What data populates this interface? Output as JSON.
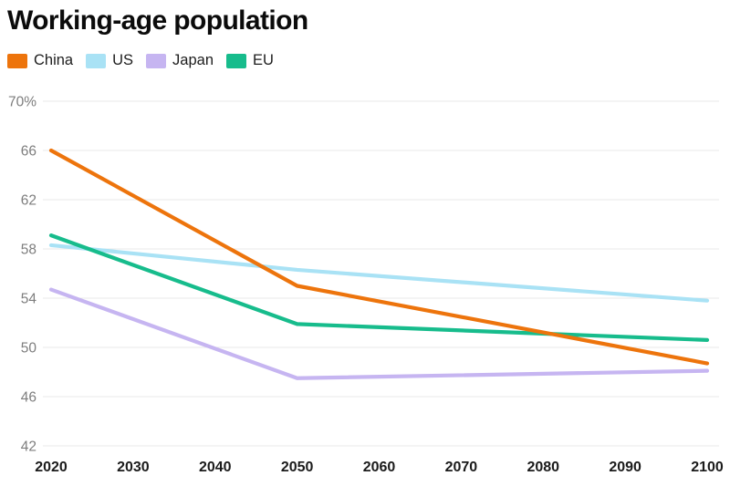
{
  "title": "Working-age population",
  "chart_data": {
    "type": "line",
    "title": "Working-age population",
    "x": [
      2020,
      2050,
      2100
    ],
    "series": [
      {
        "name": "China",
        "color": "#ED740C",
        "values": [
          66.0,
          55.0,
          48.7
        ]
      },
      {
        "name": "US",
        "color": "#A9E2F5",
        "values": [
          58.3,
          56.3,
          53.8
        ]
      },
      {
        "name": "Japan",
        "color": "#C6B5F1",
        "values": [
          54.7,
          47.5,
          48.1
        ]
      },
      {
        "name": "EU",
        "color": "#17BC8C",
        "values": [
          59.1,
          51.9,
          50.6
        ]
      }
    ],
    "xlim": [
      2020,
      2100
    ],
    "ylim": [
      42,
      70
    ],
    "xticks": [
      2020,
      2030,
      2040,
      2050,
      2060,
      2070,
      2080,
      2090,
      2100
    ],
    "yticks": [
      42,
      46,
      50,
      54,
      58,
      62,
      66,
      70
    ],
    "ytick_labels": [
      "42",
      "46",
      "50",
      "54",
      "58",
      "62",
      "66",
      "70%"
    ],
    "grid": "horizontal",
    "legend_position": "top-left",
    "draw_order": [
      "US",
      "Japan",
      "EU",
      "China"
    ]
  },
  "style": {
    "background": "#ffffff",
    "grid_color": "#eaeaea",
    "ytick_color": "#7d7d7d",
    "xtick_color": "#1b1b1b",
    "title_color": "#0b0b0b"
  }
}
